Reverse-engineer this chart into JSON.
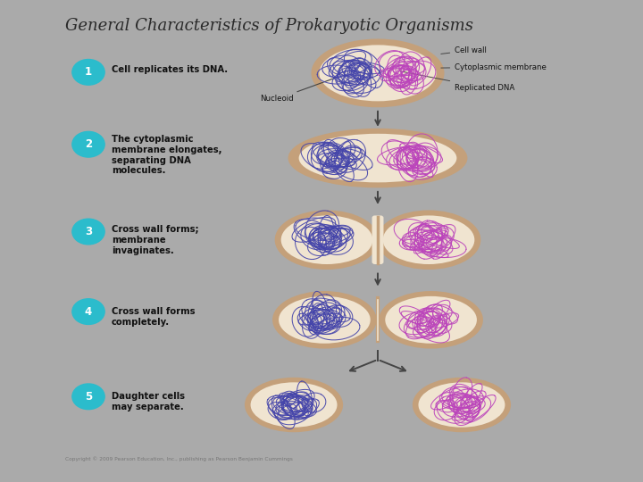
{
  "title": "General Characteristics of Prokaryotic Organisms",
  "title_fontsize": 13,
  "title_color": "#2a2a2a",
  "bg_outer": "#aaaaaa",
  "bg_panel": "#ffffff",
  "step_circle_color": "#2bbccc",
  "step_circle_text_color": "#ffffff",
  "step_texts": [
    "Cell replicates its DNA.",
    "The cytoplasmic\nmembrane elongates,\nseparating DNA\nmolecules.",
    "Cross wall forms;\nmembrane\ninvaginates.",
    "Cross wall forms\ncompletely.",
    "Daughter cells\nmay separate."
  ],
  "right_labels": [
    "Cell wall",
    "Cytoplasmic membrane",
    "Replicated DNA"
  ],
  "nucleoid_label": "Nucleoid",
  "cell_wall_color": "#c4a07a",
  "cell_interior_color": "#f0e4d0",
  "dna_color1": "#4444aa",
  "dna_color2": "#bb44bb",
  "arrow_color": "#444444",
  "copyright_text": "Copyright © 2009 Pearson Education, Inc., publishing as Pearson Benjamin Cummings"
}
